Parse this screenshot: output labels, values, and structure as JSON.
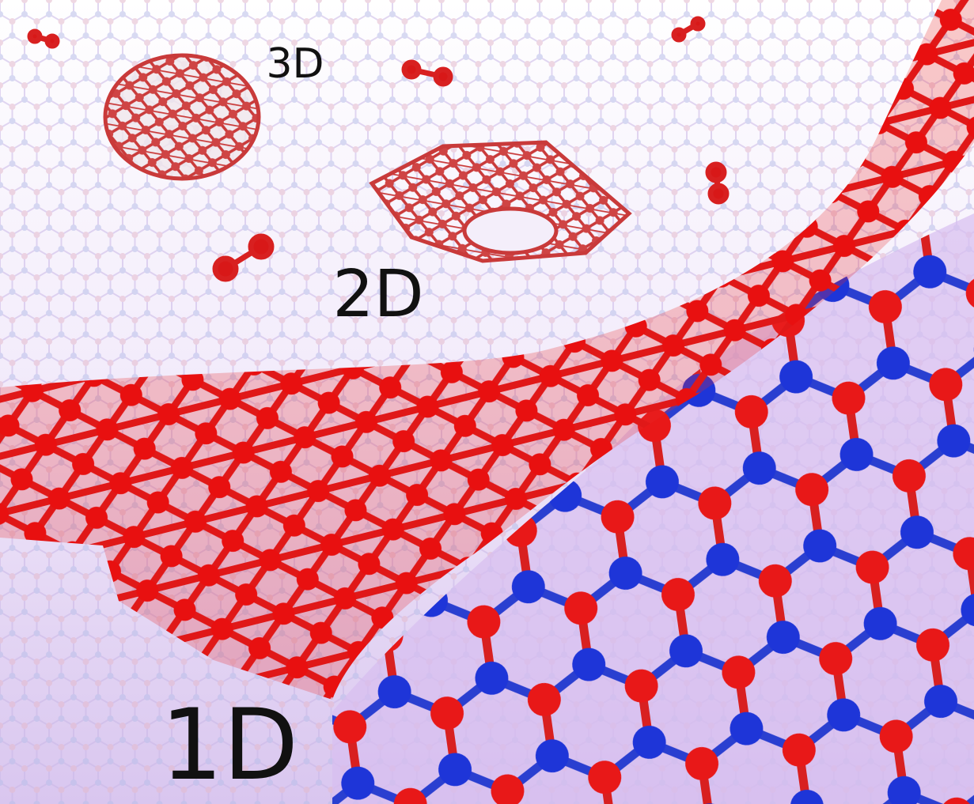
{
  "labels": [
    "3D",
    "2D",
    "1D"
  ]
}
